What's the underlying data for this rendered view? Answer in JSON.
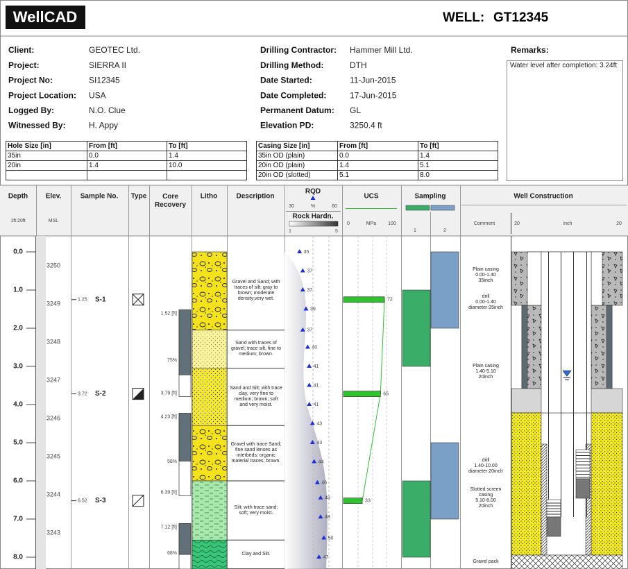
{
  "header": {
    "logo": "WellCAD",
    "well_label": "WELL:",
    "well_id": "GT12345"
  },
  "project_info": [
    {
      "label": "Client:",
      "value": "GEOTEC Ltd."
    },
    {
      "label": "Project:",
      "value": "SIERRA II"
    },
    {
      "label": "Project No:",
      "value": "SI12345"
    },
    {
      "label": "Project Location:",
      "value": "USA"
    },
    {
      "label": "Logged By:",
      "value": "N.O. Clue"
    },
    {
      "label": "Witnessed By:",
      "value": "H. Appy"
    }
  ],
  "drilling_info": [
    {
      "label": "Drilling Contractor:",
      "value": "Hammer Mill Ltd."
    },
    {
      "label": "Drilling Method:",
      "value": "DTH"
    },
    {
      "label": "Date Started:",
      "value": "11-Jun-2015"
    },
    {
      "label": "Date Completed:",
      "value": "17-Jun-2015"
    },
    {
      "label": "Permanent Datum:",
      "value": "GL"
    },
    {
      "label": "Elevation PD:",
      "value": "3250.4 ft"
    }
  ],
  "remarks": {
    "title": "Remarks:",
    "text": "Water level after completion: 3.24ft"
  },
  "hole_table": {
    "columns": [
      "Hole Size  [in]",
      "From  [ft]",
      "To  [ft]"
    ],
    "rows": [
      [
        "35in",
        "0.0",
        "1.4"
      ],
      [
        "20in",
        "1.4",
        "10.0"
      ]
    ]
  },
  "casing_table": {
    "columns": [
      "Casing Size  [in]",
      "From  [ft]",
      "To  [ft]"
    ],
    "rows": [
      [
        "35in OD (plain)",
        "0.0",
        "1.4"
      ],
      [
        "20in OD (plain)",
        "1.4",
        "5.1"
      ],
      [
        "20in OD (slotted)",
        "5.1",
        "8.0"
      ]
    ]
  },
  "log": {
    "headers": {
      "depth": "Depth",
      "depth_scale": "1ft:20ft",
      "elevation": "Elev.",
      "elevation_unit": "MSL",
      "sample": "Sample No.",
      "type": "Type",
      "core": "Core\nRecovery",
      "litho": "Litho",
      "description": "Description"
    },
    "depth_ticks": [
      {
        "value": 0,
        "label": "0.0"
      },
      {
        "value": 1,
        "label": "1.0"
      },
      {
        "value": 2,
        "label": "2.0"
      },
      {
        "value": 3,
        "label": "3.0"
      },
      {
        "value": 4,
        "label": "4.0"
      },
      {
        "value": 5,
        "label": "5.0"
      },
      {
        "value": 6,
        "label": "6.0"
      },
      {
        "value": 7,
        "label": "7.0"
      },
      {
        "value": 8,
        "label": "8.0"
      }
    ],
    "elevations": [
      3250,
      3249,
      3248,
      3247,
      3246,
      3245,
      3244,
      3243
    ],
    "samples": [
      {
        "depth": 1.25,
        "id": "S-1",
        "type": "cross"
      },
      {
        "depth": 3.72,
        "id": "S-2",
        "type": "half"
      },
      {
        "depth": 6.52,
        "id": "S-3",
        "type": "slash"
      }
    ],
    "core_runs": [
      {
        "top": 1.52,
        "top_label": "1.52 [ft]",
        "bottom": 3.79,
        "bottom_label": "3.79 [ft]",
        "recovery": 75,
        "recovery_label": "75%"
      },
      {
        "top": 4.23,
        "top_label": "4.23 [ft]",
        "bottom": 6.39,
        "bottom_label": "6.39 [ft]",
        "recovery": 58,
        "recovery_label": "58%"
      },
      {
        "top": 7.12,
        "top_label": "7.12 [ft]",
        "bottom": null,
        "recovery": 68,
        "recovery_label": "68%"
      }
    ],
    "layers": [
      {
        "top": 0,
        "bottom": 2.05,
        "pattern": "gravel",
        "description": "Gravel and Sand; with traces of silt; gray to brown; moderate density;very wet."
      },
      {
        "top": 2.05,
        "bottom": 3.05,
        "pattern": "lightsand",
        "description": "Sand with traces of gravel; trace silt, fine to medium; brown."
      },
      {
        "top": 3.05,
        "bottom": 4.55,
        "pattern": "sand",
        "description": "Sand and Silt; with trace clay, very fine to medium; brown; soft and very moist."
      },
      {
        "top": 4.55,
        "bottom": 6.0,
        "pattern": "gravel",
        "description": "Gravel with trace Sand; fine sand lenses as interbeds; organic material traces; brown."
      },
      {
        "top": 6.0,
        "bottom": 7.55,
        "pattern": "silt",
        "description": "Silt; with trace sand; soft; very moist."
      },
      {
        "top": 7.55,
        "bottom": null,
        "pattern": "clay",
        "description": "Clay and Silt."
      }
    ],
    "rqd": {
      "title": "RQD",
      "unit": "%",
      "xlim": [
        30,
        60
      ],
      "color": "#1c2fd6",
      "points": [
        {
          "depth": 0,
          "value": 35
        },
        {
          "depth": 0.5,
          "value": 37
        },
        {
          "depth": 1,
          "value": 37
        },
        {
          "depth": 1.5,
          "value": 39
        },
        {
          "depth": 2.05,
          "value": 37
        },
        {
          "depth": 2.5,
          "value": 40
        },
        {
          "depth": 3,
          "value": 41
        },
        {
          "depth": 3.5,
          "value": 41
        },
        {
          "depth": 4,
          "value": 41
        },
        {
          "depth": 4.5,
          "value": 43
        },
        {
          "depth": 5,
          "value": 43
        },
        {
          "depth": 5.5,
          "value": 44
        },
        {
          "depth": 6.05,
          "value": 46
        },
        {
          "depth": 6.45,
          "value": 48
        },
        {
          "depth": 6.95,
          "value": 48
        },
        {
          "depth": 7.5,
          "value": 50
        },
        {
          "depth": 8,
          "value": 47
        }
      ]
    },
    "rock_hardness": {
      "title": "Rock Hardn.",
      "xlim": [
        1,
        5
      ]
    },
    "ucs": {
      "title": "UCS",
      "unit": "MPa",
      "xlim": [
        0,
        100
      ],
      "color": "#2fc22f",
      "points": [
        {
          "depth": 1.25,
          "value": 72
        },
        {
          "depth": 3.72,
          "value": 65
        },
        {
          "depth": 6.52,
          "value": 33
        }
      ]
    },
    "sampling": {
      "title": "Sampling",
      "columns": [
        {
          "label": "1",
          "color": "#3aae68",
          "intervals": [
            [
              1,
              3
            ],
            [
              6,
              8
            ]
          ]
        },
        {
          "label": "2",
          "color": "#7ba0c8",
          "intervals": [
            [
              0,
              2
            ],
            [
              5,
              7
            ]
          ]
        }
      ]
    },
    "well": {
      "title": "Well Construction",
      "comment_title": "Comment",
      "scale_left": 20,
      "scale_unit": "inch",
      "scale_right": 20,
      "water_level": 3.24,
      "comments": [
        "Plain casing\n0.00-1.40\n35inch",
        "drill\n0.00-1.40\ndiameter:35inch",
        "Plain casing\n1.40-5.10\n20inch",
        "drill\n1.40-10.00\ndiameter:20inch",
        "Slotted screen\ncasing\n5.10-8.00\n20inch",
        "Gravel pack"
      ]
    }
  }
}
